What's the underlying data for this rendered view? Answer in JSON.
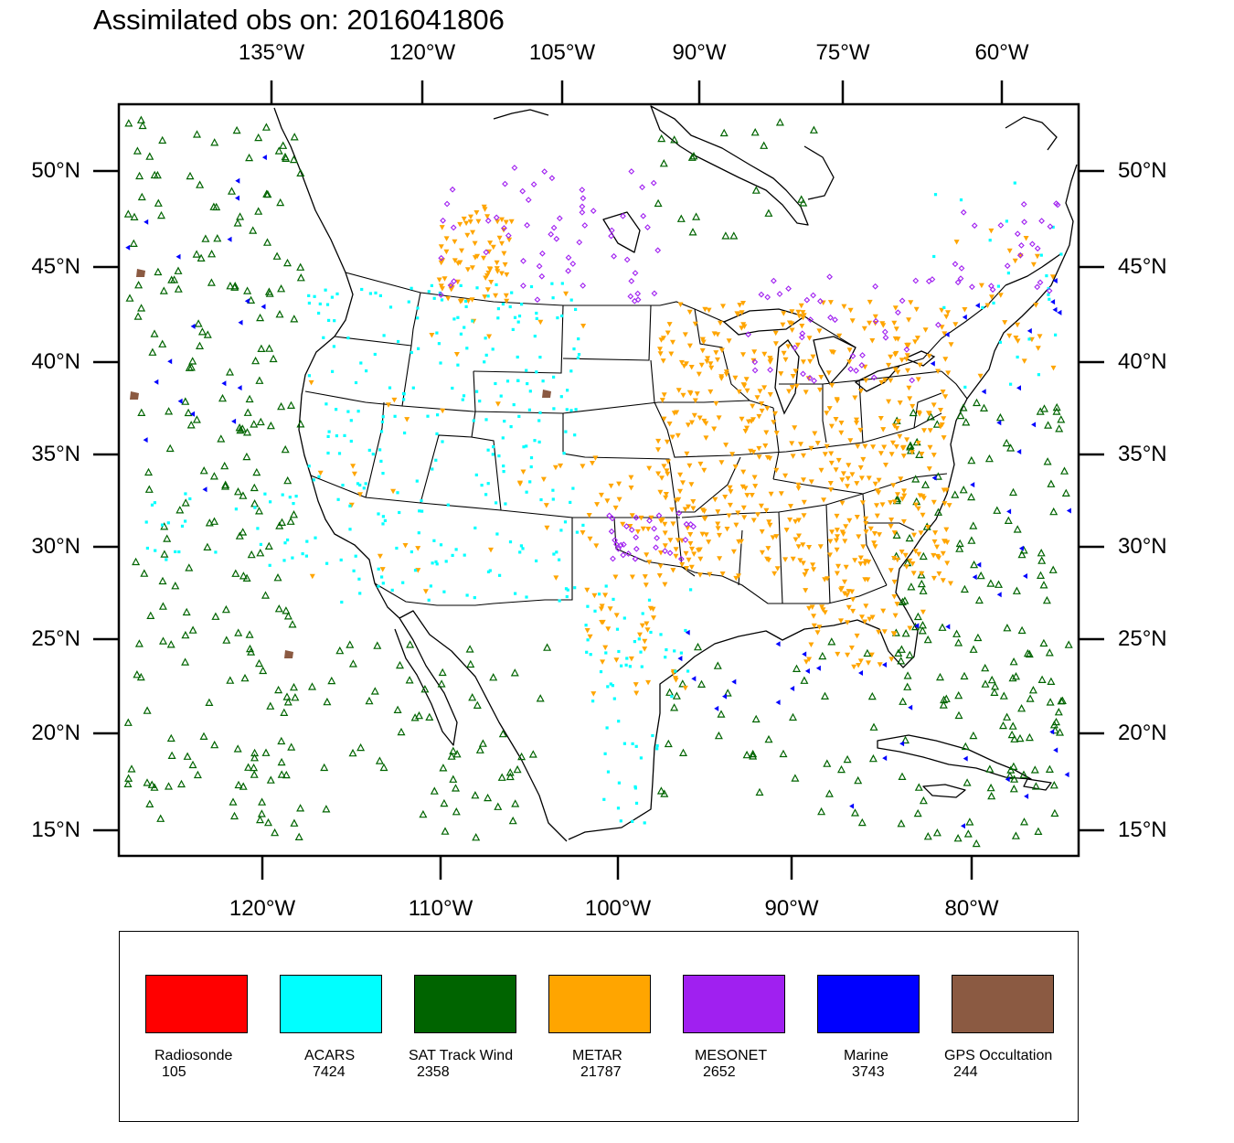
{
  "title": "Assimilated obs on: 2016041806",
  "axes": {
    "top_ticks": [
      "135°W",
      "120°W",
      "105°W",
      "90°W",
      "75°W",
      "60°W"
    ],
    "bottom_ticks": [
      "120°W",
      "110°W",
      "100°W",
      "90°W",
      "80°W"
    ],
    "left_ticks": [
      "50°N",
      "45°N",
      "40°N",
      "35°N",
      "30°N",
      "25°N",
      "20°N",
      "15°N"
    ],
    "right_ticks": [
      "50°N",
      "45°N",
      "40°N",
      "35°N",
      "30°N",
      "25°N",
      "20°N",
      "15°N"
    ]
  },
  "legend": [
    {
      "name": "Radiosonde",
      "count": "105",
      "color": "#ff0000"
    },
    {
      "name": "ACARS",
      "count": "7424",
      "color": "#00ffff"
    },
    {
      "name": "SAT Track Wind",
      "count": "2358",
      "color": "#006400"
    },
    {
      "name": "METAR",
      "count": "21787",
      "color": "#ffa500"
    },
    {
      "name": "MESONET",
      "count": "2652",
      "color": "#a020f0"
    },
    {
      "name": "Marine",
      "count": "3743",
      "color": "#0000ff"
    },
    {
      "name": "GPS Occultation",
      "count": "244",
      "color": "#8b5a42"
    }
  ]
}
